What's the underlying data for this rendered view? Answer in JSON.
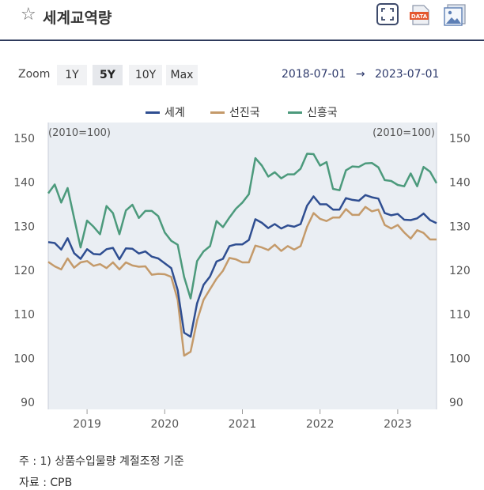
{
  "header": {
    "title": "세계교역량",
    "icons": {
      "favorite": "star-icon",
      "expand": "expand-icon",
      "data": "data-download-icon",
      "image": "image-download-icon"
    },
    "data_icon_label": "DATA"
  },
  "zoom": {
    "label": "Zoom",
    "options": [
      "1Y",
      "5Y",
      "10Y",
      "Max"
    ],
    "selected": "5Y"
  },
  "date_range": {
    "start": "2018-07-01",
    "arrow": "→",
    "end": "2023-07-01"
  },
  "colors": {
    "세계": "#2f4e91",
    "선진국": "#c49a6a",
    "신흥국": "#4c9a7c",
    "header_border": "#2e3a5c",
    "date_text": "#2e3a6c"
  },
  "chart_data": {
    "type": "line",
    "title": "",
    "xlabel": "",
    "ylabel_left": "(2010=100)",
    "ylabel_right": "(2010=100)",
    "ylim": [
      90,
      150
    ],
    "yticks": [
      90,
      100,
      110,
      120,
      130,
      140,
      150
    ],
    "xlim": [
      "2018-07",
      "2023-07"
    ],
    "xticks": [
      "2019",
      "2020",
      "2021",
      "2022",
      "2023"
    ],
    "grid": false,
    "legend_position": "top",
    "x": [
      "2018-07",
      "2018-08",
      "2018-09",
      "2018-10",
      "2018-11",
      "2018-12",
      "2019-01",
      "2019-02",
      "2019-03",
      "2019-04",
      "2019-05",
      "2019-06",
      "2019-07",
      "2019-08",
      "2019-09",
      "2019-10",
      "2019-11",
      "2019-12",
      "2020-01",
      "2020-02",
      "2020-03",
      "2020-04",
      "2020-05",
      "2020-06",
      "2020-07",
      "2020-08",
      "2020-09",
      "2020-10",
      "2020-11",
      "2020-12",
      "2021-01",
      "2021-02",
      "2021-03",
      "2021-04",
      "2021-05",
      "2021-06",
      "2021-07",
      "2021-08",
      "2021-09",
      "2021-10",
      "2021-11",
      "2021-12",
      "2022-01",
      "2022-02",
      "2022-03",
      "2022-04",
      "2022-05",
      "2022-06",
      "2022-07",
      "2022-08",
      "2022-09",
      "2022-10",
      "2022-11",
      "2022-12",
      "2023-01",
      "2023-02",
      "2023-03",
      "2023-04",
      "2023-05",
      "2023-06",
      "2023-07"
    ],
    "series": [
      {
        "name": "세계",
        "color": "#2f4e91",
        "values": [
          126.4,
          126.2,
          124.7,
          127.3,
          123.9,
          122.6,
          124.8,
          123.7,
          123.6,
          124.8,
          125.1,
          122.5,
          125.0,
          124.9,
          123.8,
          124.3,
          123.1,
          122.7,
          121.6,
          120.5,
          115.5,
          105.8,
          104.9,
          112.5,
          116.7,
          118.6,
          122.0,
          122.6,
          125.5,
          125.9,
          125.9,
          126.9,
          131.6,
          130.8,
          129.6,
          130.5,
          129.5,
          130.2,
          129.9,
          130.5,
          134.7,
          136.8,
          135.0,
          135.0,
          133.8,
          133.8,
          136.4,
          136.0,
          135.8,
          137.1,
          136.6,
          136.3,
          133.0,
          132.5,
          132.8,
          131.5,
          131.4,
          131.8,
          132.9,
          131.4,
          130.7
        ]
      },
      {
        "name": "선진국",
        "color": "#c49a6a",
        "values": [
          121.9,
          120.9,
          120.2,
          122.7,
          120.6,
          121.8,
          122.1,
          121.0,
          121.4,
          120.5,
          121.8,
          120.2,
          121.8,
          121.1,
          120.8,
          120.9,
          119.0,
          119.2,
          119.1,
          118.5,
          113.3,
          100.6,
          101.5,
          108.6,
          113.3,
          115.7,
          118.1,
          119.9,
          122.8,
          122.5,
          121.8,
          121.8,
          125.6,
          125.2,
          124.6,
          125.8,
          124.4,
          125.5,
          124.7,
          125.5,
          129.9,
          133.0,
          131.7,
          131.2,
          132.0,
          132.0,
          133.9,
          132.6,
          132.6,
          134.4,
          133.4,
          133.8,
          130.3,
          129.5,
          130.3,
          128.6,
          127.2,
          129.1,
          128.5,
          127.0,
          127.0
        ]
      },
      {
        "name": "신흥국",
        "color": "#4c9a7c",
        "values": [
          137.5,
          139.5,
          135.4,
          138.7,
          131.9,
          125.2,
          131.3,
          129.9,
          128.2,
          134.6,
          133.0,
          128.2,
          133.6,
          134.9,
          131.9,
          133.5,
          133.5,
          132.3,
          128.6,
          126.7,
          125.8,
          118.5,
          113.6,
          122.1,
          124.3,
          125.5,
          131.2,
          129.8,
          132.0,
          134.0,
          135.4,
          137.3,
          145.5,
          143.8,
          141.3,
          142.3,
          140.9,
          141.8,
          141.8,
          143.1,
          146.5,
          146.4,
          143.8,
          144.6,
          138.5,
          138.2,
          142.7,
          143.6,
          143.5,
          144.3,
          144.4,
          143.4,
          140.5,
          140.3,
          139.4,
          139.1,
          142.0,
          139.1,
          143.5,
          142.4,
          139.8
        ]
      }
    ]
  },
  "notes": {
    "footnote": "주 : 1) 상품수입물량 계절조정 기준",
    "source": "자료 :  CPB"
  }
}
